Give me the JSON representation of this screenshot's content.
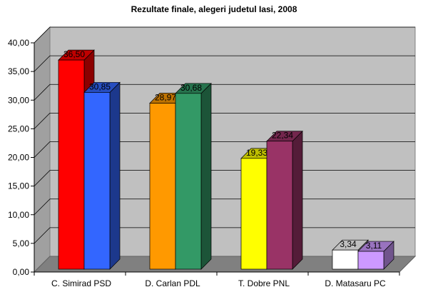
{
  "chart_data": {
    "type": "bar",
    "title": "Rezultate finale, alegeri judetul Iasi, 2008",
    "xlabel": "",
    "ylabel": "",
    "ylim": [
      0,
      40
    ],
    "yticks": [
      "0,00",
      "5,00",
      "10,00",
      "15,00",
      "20,00",
      "25,00",
      "30,00",
      "35,00",
      "40,00"
    ],
    "grid": true,
    "legend": "none",
    "categories": [
      "C. Simirad PSD",
      "D. Carlan PDL",
      "T. Dobre PNL",
      "D. Matasaru PC"
    ],
    "groups": [
      {
        "category": "C. Simirad PSD",
        "bars": [
          {
            "value": 36.5,
            "label": "36,50",
            "color": "#ff0000"
          },
          {
            "value": 30.85,
            "label": "30,85",
            "color": "#3366ff"
          }
        ]
      },
      {
        "category": "D. Carlan PDL",
        "bars": [
          {
            "value": 28.97,
            "label": "28,97",
            "color": "#ff9900"
          },
          {
            "value": 30.68,
            "label": "30,68",
            "color": "#339966"
          }
        ]
      },
      {
        "category": "T. Dobre PNL",
        "bars": [
          {
            "value": 19.33,
            "label": "19,33",
            "color": "#ffff00"
          },
          {
            "value": 22.34,
            "label": "22,34",
            "color": "#993366"
          }
        ]
      },
      {
        "category": "D. Matasaru PC",
        "bars": [
          {
            "value": 3.34,
            "label": "3,34",
            "color": "#ffffff"
          },
          {
            "value": 3.11,
            "label": "3,11",
            "color": "#cc99ff"
          }
        ]
      }
    ],
    "colors": {
      "wall": "#c0c0c0",
      "floor": "#808080",
      "gridline": "#000000"
    }
  }
}
